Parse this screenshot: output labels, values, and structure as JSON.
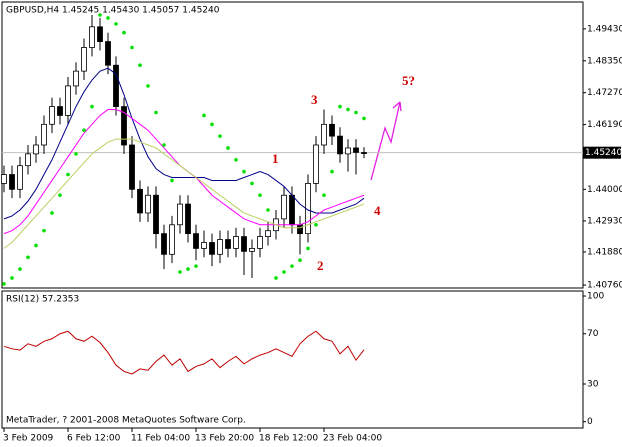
{
  "chart_data": [
    {
      "type": "candlestick",
      "title": "GBPUSD,H4  1.45245 1.45430 1.45057 1.45240",
      "categories": [
        "3 Feb 2009",
        null,
        null,
        null,
        null,
        null,
        null,
        null,
        "6 Feb 12:00",
        null,
        null,
        null,
        null,
        null,
        null,
        null,
        "11 Feb 04:00",
        null,
        null,
        null,
        null,
        null,
        null,
        null,
        "13 Feb 20:00",
        null,
        null,
        null,
        null,
        null,
        null,
        null,
        "18 Feb 12:00",
        null,
        null,
        null,
        null,
        null,
        null,
        null,
        "23 Feb 04:00",
        null,
        null,
        null,
        null,
        null
      ],
      "open": [
        1.442,
        1.445,
        1.44,
        1.448,
        1.452,
        1.455,
        1.462,
        1.468,
        1.465,
        1.475,
        1.48,
        1.488,
        1.495,
        1.49,
        1.482,
        1.468,
        1.455,
        1.44,
        1.432,
        1.438,
        1.425,
        1.418,
        1.428,
        1.435,
        1.425,
        1.42,
        1.422,
        1.418,
        1.423,
        1.42,
        1.424,
        1.419,
        1.42,
        1.424,
        1.426,
        1.43,
        1.438,
        1.428,
        1.425,
        1.442,
        1.455,
        1.462,
        1.458,
        1.452,
        1.454,
        1.45245
      ],
      "high": [
        1.448,
        1.448,
        1.451,
        1.455,
        1.458,
        1.465,
        1.471,
        1.471,
        1.478,
        1.483,
        1.491,
        1.499,
        1.498,
        1.493,
        1.485,
        1.471,
        1.458,
        1.443,
        1.441,
        1.441,
        1.428,
        1.431,
        1.438,
        1.438,
        1.428,
        1.426,
        1.425,
        1.426,
        1.426,
        1.427,
        1.427,
        1.423,
        1.427,
        1.429,
        1.433,
        1.441,
        1.441,
        1.431,
        1.445,
        1.458,
        1.467,
        1.465,
        1.461,
        1.457,
        1.457,
        1.4543
      ],
      "low": [
        1.439,
        1.437,
        1.437,
        1.445,
        1.449,
        1.452,
        1.459,
        1.462,
        1.462,
        1.472,
        1.477,
        1.485,
        1.487,
        1.479,
        1.465,
        1.452,
        1.437,
        1.429,
        1.429,
        1.42,
        1.413,
        1.415,
        1.425,
        1.422,
        1.416,
        1.417,
        1.414,
        1.415,
        1.417,
        1.417,
        1.411,
        1.41,
        1.417,
        1.421,
        1.423,
        1.427,
        1.425,
        1.418,
        1.422,
        1.439,
        1.452,
        1.455,
        1.449,
        1.446,
        1.445,
        1.45057
      ],
      "close": [
        1.445,
        1.44,
        1.448,
        1.452,
        1.455,
        1.462,
        1.468,
        1.465,
        1.475,
        1.48,
        1.488,
        1.495,
        1.49,
        1.482,
        1.468,
        1.455,
        1.44,
        1.432,
        1.438,
        1.425,
        1.418,
        1.428,
        1.435,
        1.425,
        1.42,
        1.422,
        1.418,
        1.423,
        1.42,
        1.424,
        1.419,
        1.42,
        1.424,
        1.426,
        1.43,
        1.438,
        1.428,
        1.425,
        1.442,
        1.455,
        1.462,
        1.458,
        1.452,
        1.454,
        1.4525,
        1.4524
      ],
      "lines": [
        {
          "color": "#00008b",
          "values": [
            1.43,
            1.431,
            1.433,
            1.436,
            1.44,
            1.445,
            1.45,
            1.456,
            1.462,
            1.468,
            1.473,
            1.477,
            1.48,
            1.481,
            1.479,
            1.472,
            1.464,
            1.457,
            1.451,
            1.447,
            1.445,
            1.444,
            1.444,
            1.444,
            1.444,
            1.444,
            1.443,
            1.443,
            1.443,
            1.443,
            1.444,
            1.445,
            1.446,
            1.445,
            1.443,
            1.441,
            1.438,
            1.435,
            1.433,
            1.432,
            1.432,
            1.432,
            1.433,
            1.434,
            1.435,
            1.437
          ]
        },
        {
          "color": "#ff00ff",
          "values": [
            1.425,
            1.426,
            1.428,
            1.431,
            1.435,
            1.439,
            1.443,
            1.447,
            1.451,
            1.455,
            1.459,
            1.462,
            1.465,
            1.467,
            1.467,
            1.466,
            1.464,
            1.462,
            1.46,
            1.457,
            1.454,
            1.451,
            1.448,
            1.446,
            1.444,
            1.441,
            1.438,
            1.436,
            1.434,
            1.432,
            1.43,
            1.429,
            1.428,
            1.428,
            1.428,
            1.428,
            1.428,
            1.428,
            1.429,
            1.431,
            1.433,
            1.434,
            1.435,
            1.436,
            1.437,
            1.438
          ]
        },
        {
          "color": "#b8d060",
          "values": [
            1.42,
            1.422,
            1.425,
            1.428,
            1.431,
            1.434,
            1.437,
            1.44,
            1.443,
            1.446,
            1.449,
            1.452,
            1.454,
            1.456,
            1.457,
            1.457,
            1.457,
            1.456,
            1.455,
            1.454,
            1.452,
            1.45,
            1.448,
            1.446,
            1.444,
            1.442,
            1.44,
            1.438,
            1.436,
            1.434,
            1.432,
            1.431,
            1.43,
            1.429,
            1.428,
            1.427,
            1.427,
            1.427,
            1.428,
            1.429,
            1.43,
            1.431,
            1.432,
            1.433,
            1.434,
            1.435
          ]
        }
      ],
      "sar": {
        "color": "#00e000",
        "values": [
          1.408,
          1.41,
          1.413,
          1.417,
          1.421,
          1.426,
          1.432,
          1.438,
          1.445,
          1.452,
          1.46,
          1.468,
          1.499,
          1.498,
          1.496,
          1.493,
          1.488,
          1.482,
          1.475,
          1.466,
          1.455,
          1.443,
          1.412,
          1.413,
          1.414,
          1.465,
          1.462,
          1.458,
          1.454,
          1.45,
          1.446,
          1.442,
          1.438,
          1.433,
          1.41,
          1.412,
          1.414,
          1.416,
          1.42,
          1.428,
          1.438,
          1.446,
          1.468,
          1.467,
          1.466,
          1.464
        ]
      },
      "last_price": {
        "value": 1.4524,
        "label": "1.45240"
      },
      "ylim": [
        1.4066,
        1.5034
      ],
      "yticks": [
        {
          "value": 1.4943,
          "label": "1.49430"
        },
        {
          "value": 1.4835,
          "label": "1.48350"
        },
        {
          "value": 1.4727,
          "label": "1.47270"
        },
        {
          "value": 1.4619,
          "label": "1.46190"
        },
        {
          "value": 1.44,
          "label": "1.44000"
        },
        {
          "value": 1.4293,
          "label": "1.42930"
        },
        {
          "value": 1.4188,
          "label": "1.41880"
        },
        {
          "value": 1.4076,
          "label": "1.40760"
        }
      ],
      "annotations": [
        "1",
        "2",
        "3",
        "4",
        "5?"
      ]
    },
    {
      "type": "line",
      "title": "RSI(12) 57.2353",
      "color": "#c00000",
      "values": [
        60,
        58,
        57,
        62,
        60,
        64,
        66,
        70,
        72,
        66,
        64,
        68,
        63,
        55,
        45,
        40,
        38,
        42,
        41,
        48,
        53,
        45,
        50,
        40,
        44,
        46,
        50,
        43,
        48,
        52,
        46,
        50,
        53,
        55,
        58,
        55,
        52,
        62,
        68,
        72,
        66,
        64,
        54,
        60,
        49,
        57.2353
      ],
      "ylim": [
        -5,
        104
      ],
      "yticks": [
        100,
        70,
        30,
        0
      ],
      "footer": "MetaTrader, ? 2001-2008 MetaQuotes Software Corp."
    }
  ]
}
